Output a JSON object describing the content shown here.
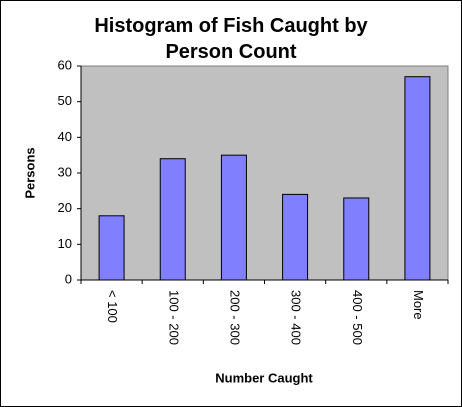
{
  "chart_data": {
    "type": "bar",
    "title": "Histogram of Fish Caught by Person Count",
    "x_label": "Number Caught",
    "y_label": "Persons",
    "categories": [
      "< 100",
      "100 - 200",
      "200 - 300",
      "300 - 400",
      "400 - 500",
      "More"
    ],
    "values": [
      18,
      34,
      35,
      24,
      23,
      57
    ],
    "color": "#8080ff",
    "ylim": [
      0,
      60
    ],
    "yticks": [
      0,
      10,
      20,
      30,
      40,
      50,
      60
    ],
    "grid": false
  }
}
